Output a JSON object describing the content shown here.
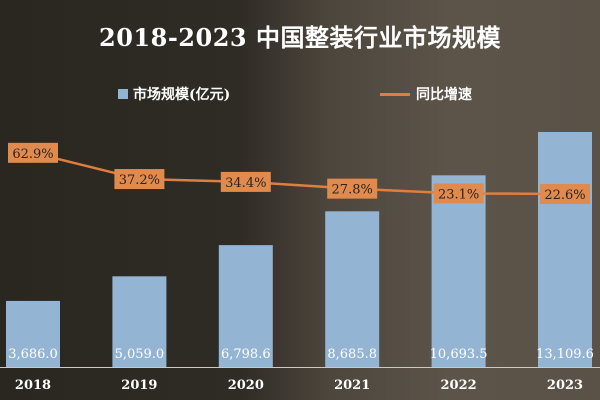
{
  "title": "2018-2023 中国整装行业市场规模",
  "legend": {
    "bar": "市场规模(亿元)",
    "line": "同比增速"
  },
  "colors": {
    "bar": "#93b4d3",
    "line": "#e07f3d",
    "label_box": "#e08a4e"
  },
  "chart_data": {
    "type": "bar+line",
    "title": "2018-2023 中国整装行业市场规模",
    "categories": [
      "2018",
      "2019",
      "2020",
      "2021",
      "2022",
      "2023"
    ],
    "series": [
      {
        "name": "市场规模(亿元)",
        "type": "bar",
        "values": [
          3686.0,
          5059.0,
          6798.6,
          8685.8,
          10693.5,
          13109.6
        ],
        "labels": [
          "3,686.0",
          "5,059.0",
          "6,798.6",
          "8,685.8",
          "10,693.5",
          "13,109.6"
        ]
      },
      {
        "name": "同比增速",
        "type": "line",
        "values": [
          62.9,
          37.2,
          34.4,
          27.8,
          23.1,
          22.6
        ],
        "labels": [
          "62.9%",
          "37.2%",
          "34.4%",
          "27.8%",
          "23.1%",
          "22.6%"
        ]
      }
    ],
    "legend_position": "top",
    "grid": false
  }
}
